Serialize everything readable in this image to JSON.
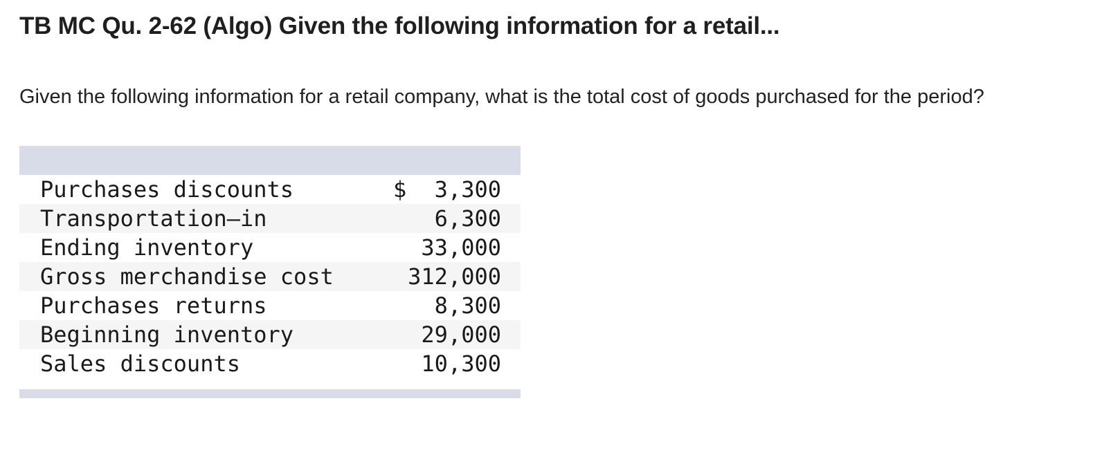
{
  "title": "TB MC Qu. 2-62 (Algo) Given the following information for a retail...",
  "question": "Given the following information for a retail company, what is the total cost of goods purchased for the period?",
  "table": {
    "currency_symbol": "$",
    "rows": [
      {
        "label": "Purchases discounts",
        "amount": "3,300"
      },
      {
        "label": "Transportation–in",
        "amount": "6,300"
      },
      {
        "label": "Ending inventory",
        "amount": "33,000"
      },
      {
        "label": "Gross merchandise cost",
        "amount": "312,000"
      },
      {
        "label": "Purchases returns",
        "amount": "8,300"
      },
      {
        "label": "Beginning inventory",
        "amount": "29,000"
      },
      {
        "label": "Sales discounts",
        "amount": "10,300"
      }
    ]
  }
}
